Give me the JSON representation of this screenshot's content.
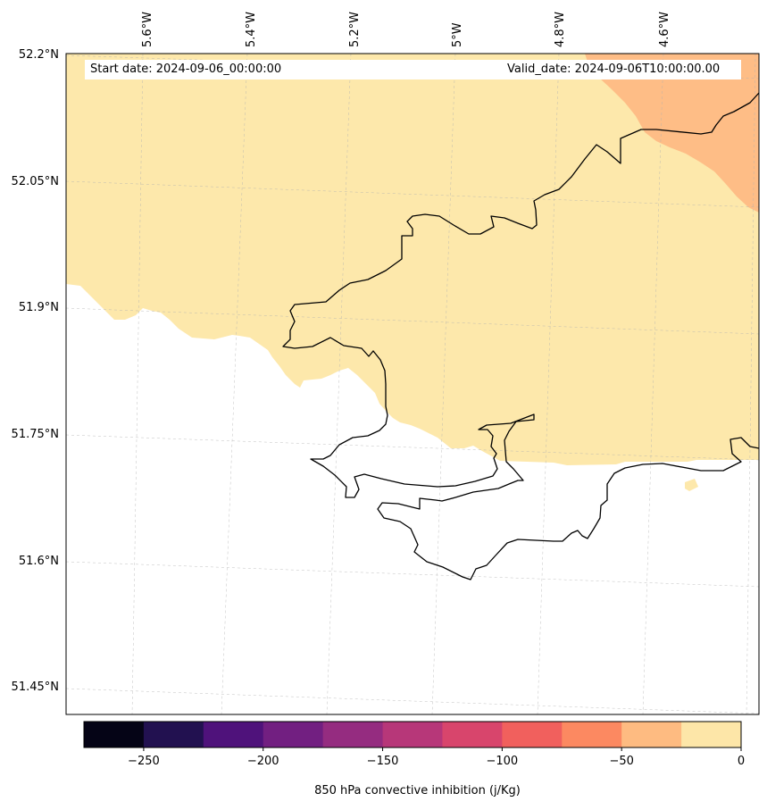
{
  "header": {
    "start_date": "Start date: 2024-09-06_00:00:00",
    "valid_date": "Valid_date: 2024-09-06T10:00:00.00"
  },
  "map": {
    "longitude_labels": [
      "5.6°W",
      "5.4°W",
      "5.2°W",
      "5°W",
      "4.8°W",
      "4.6°W"
    ],
    "latitude_labels": [
      "52.2°N",
      "52.05°N",
      "51.9°N",
      "51.75°N",
      "51.6°N",
      "51.45°N"
    ]
  },
  "colorbar": {
    "label": "850 hPa convective inhibition (j/Kg)",
    "ticks": [
      "−250",
      "−200",
      "−150",
      "−100",
      "−50",
      "0"
    ],
    "colors": [
      "#050416",
      "#221150",
      "#4f127b",
      "#721f81",
      "#952c80",
      "#b73779",
      "#d8456c",
      "#f1605d",
      "#fc8961",
      "#febb81",
      "#fde6a8"
    ],
    "field_colors": {
      "near_zero": "#fde8ab",
      "minus_25_to_0": "#febd86",
      "no_data": "#ffffff"
    }
  }
}
